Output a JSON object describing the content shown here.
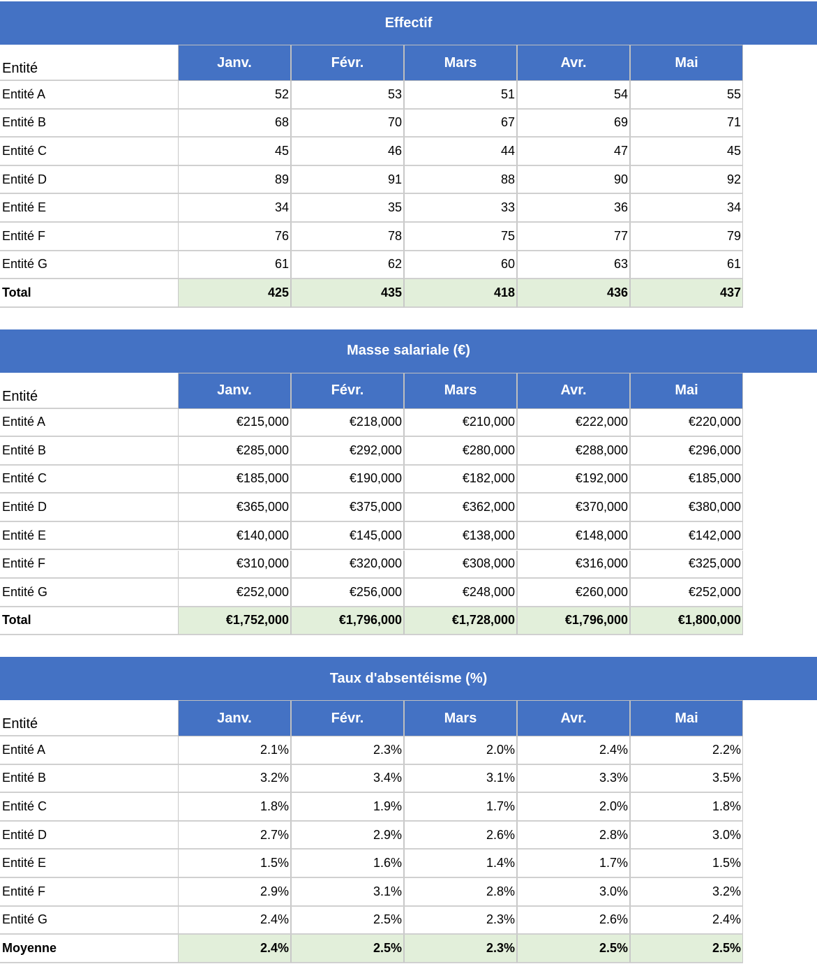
{
  "tables": [
    {
      "title": "Effectif",
      "header": [
        "Entité",
        "Janv.",
        "Févr.",
        "Mars",
        "Avr.",
        "Mai"
      ],
      "rows": [
        [
          "Entité A",
          "52",
          "53",
          "51",
          "54",
          "55"
        ],
        [
          "Entité B",
          "68",
          "70",
          "67",
          "69",
          "71"
        ],
        [
          "Entité C",
          "45",
          "46",
          "44",
          "47",
          "45"
        ],
        [
          "Entité D",
          "89",
          "91",
          "88",
          "90",
          "92"
        ],
        [
          "Entité E",
          "34",
          "35",
          "33",
          "36",
          "34"
        ],
        [
          "Entité F",
          "76",
          "78",
          "75",
          "77",
          "79"
        ],
        [
          "Entité G",
          "61",
          "62",
          "60",
          "63",
          "61"
        ]
      ],
      "total": [
        "Total",
        "425",
        "435",
        "418",
        "436",
        "437"
      ]
    },
    {
      "title": "Masse salariale (€)",
      "header": [
        "Entité",
        "Janv.",
        "Févr.",
        "Mars",
        "Avr.",
        "Mai"
      ],
      "rows": [
        [
          "Entité A",
          "€215,000",
          "€218,000",
          "€210,000",
          "€222,000",
          "€220,000"
        ],
        [
          "Entité B",
          "€285,000",
          "€292,000",
          "€280,000",
          "€288,000",
          "€296,000"
        ],
        [
          "Entité C",
          "€185,000",
          "€190,000",
          "€182,000",
          "€192,000",
          "€185,000"
        ],
        [
          "Entité D",
          "€365,000",
          "€375,000",
          "€362,000",
          "€370,000",
          "€380,000"
        ],
        [
          "Entité E",
          "€140,000",
          "€145,000",
          "€138,000",
          "€148,000",
          "€142,000"
        ],
        [
          "Entité F",
          "€310,000",
          "€320,000",
          "€308,000",
          "€316,000",
          "€325,000"
        ],
        [
          "Entité G",
          "€252,000",
          "€256,000",
          "€248,000",
          "€260,000",
          "€252,000"
        ]
      ],
      "total": [
        "Total",
        "€1,752,000",
        "€1,796,000",
        "€1,728,000",
        "€1,796,000",
        "€1,800,000"
      ]
    },
    {
      "title": "Taux d'absentéisme (%)",
      "header": [
        "Entité",
        "Janv.",
        "Févr.",
        "Mars",
        "Avr.",
        "Mai"
      ],
      "rows": [
        [
          "Entité A",
          "2.1%",
          "2.3%",
          "2.0%",
          "2.4%",
          "2.2%"
        ],
        [
          "Entité B",
          "3.2%",
          "3.4%",
          "3.1%",
          "3.3%",
          "3.5%"
        ],
        [
          "Entité C",
          "1.8%",
          "1.9%",
          "1.7%",
          "2.0%",
          "1.8%"
        ],
        [
          "Entité D",
          "2.7%",
          "2.9%",
          "2.6%",
          "2.8%",
          "3.0%"
        ],
        [
          "Entité E",
          "1.5%",
          "1.6%",
          "1.4%",
          "1.7%",
          "1.5%"
        ],
        [
          "Entité F",
          "2.9%",
          "3.1%",
          "2.8%",
          "3.0%",
          "3.2%"
        ],
        [
          "Entité G",
          "2.4%",
          "2.5%",
          "2.3%",
          "2.6%",
          "2.4%"
        ]
      ],
      "total": [
        "Moyenne",
        "2.4%",
        "2.5%",
        "2.3%",
        "2.5%",
        "2.5%"
      ]
    }
  ]
}
